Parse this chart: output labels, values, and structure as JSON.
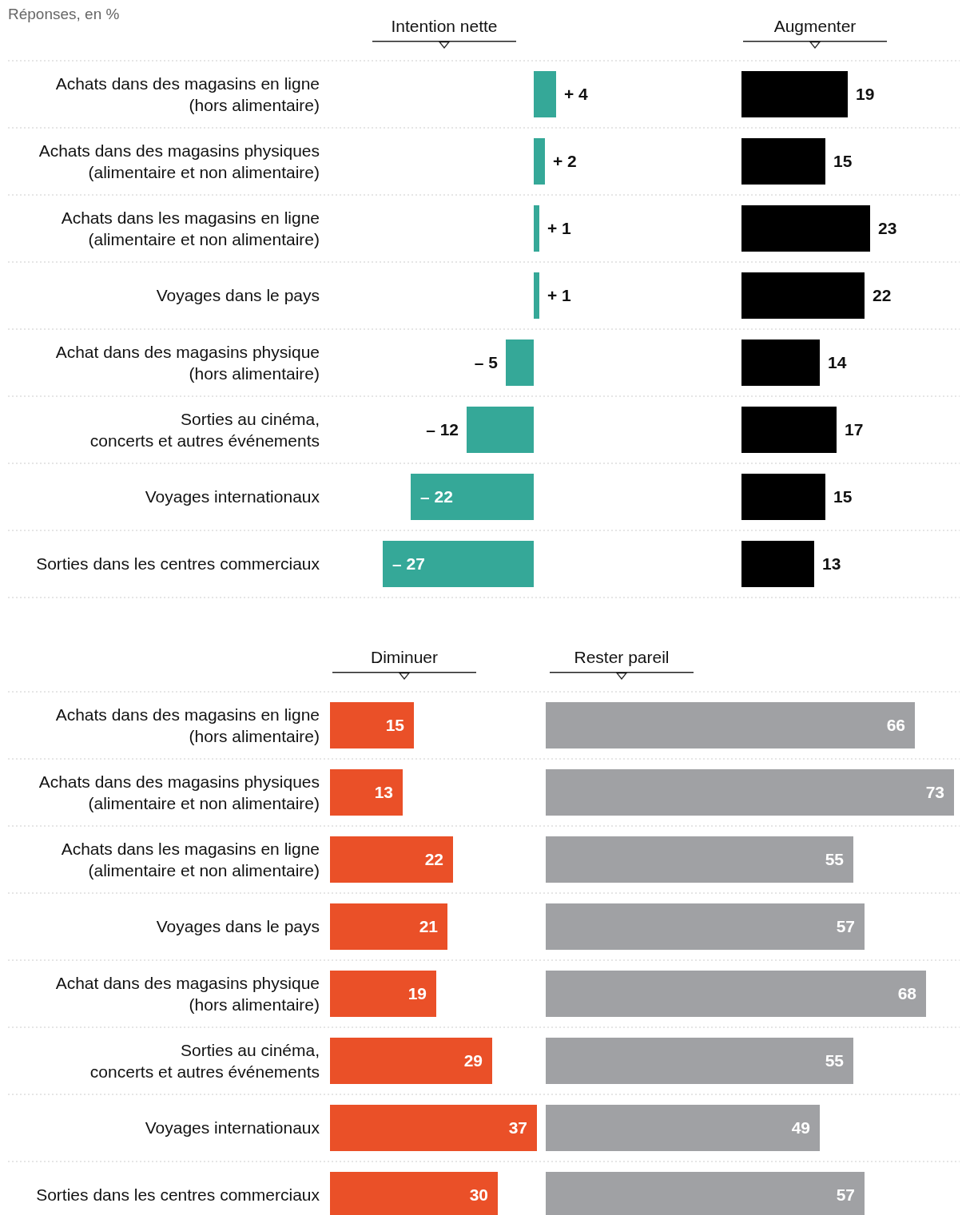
{
  "chart_data": [
    {
      "type": "bar",
      "orientation": "horizontal",
      "title": "Intention nette",
      "subtitle": "Réponses, en %",
      "categories": [
        "Achats dans des magasins en ligne (hors alimentaire)",
        "Achats dans des magasins physiques (alimentaire et non alimentaire)",
        "Achats dans les magasins en ligne (alimentaire et non alimentaire)",
        "Voyages dans le pays",
        "Achat dans des magasins physique (hors alimentaire)",
        "Sorties au cinéma, concerts et autres événements",
        "Voyages internationaux",
        "Sorties dans les centres commerciaux"
      ],
      "values": [
        4,
        2,
        1,
        1,
        -5,
        -12,
        -22,
        -27
      ],
      "value_labels": [
        "+ 4",
        "+ 2",
        "+ 1",
        "+ 1",
        "– 5",
        "– 12",
        "– 22",
        "– 27"
      ],
      "color": "#35a898",
      "tick_labels": "y"
    },
    {
      "type": "bar",
      "orientation": "horizontal",
      "title": "Augmenter",
      "categories": [
        null,
        null,
        null,
        null,
        null,
        null,
        null,
        null
      ],
      "values": [
        19,
        15,
        23,
        22,
        14,
        17,
        15,
        13
      ],
      "data_labels": true,
      "color": "#000000",
      "tick_labels": false
    },
    {
      "type": "bar",
      "orientation": "horizontal",
      "title": "Diminuer",
      "categories": [
        "Achats dans des magasins en ligne (hors alimentaire)",
        "Achats dans des magasins physiques (alimentaire et non alimentaire)",
        "Achats dans les magasins en ligne (alimentaire et non alimentaire)",
        "Voyages dans le pays",
        "Achat dans des magasins physique (hors alimentaire)",
        "Sorties au cinéma, concerts et autres événements",
        "Voyages internationaux",
        "Sorties dans les centres commerciaux"
      ],
      "values": [
        15,
        13,
        22,
        21,
        19,
        29,
        37,
        30
      ],
      "data_labels": true,
      "color": "#ea5028",
      "tick_labels": "y"
    },
    {
      "type": "bar",
      "orientation": "horizontal",
      "title": "Rester pareil",
      "categories": [
        null,
        null,
        null,
        null,
        null,
        null,
        null,
        null
      ],
      "values": [
        66,
        73,
        55,
        57,
        68,
        55,
        49,
        57
      ],
      "data_labels": true,
      "color": "#a0a1a4",
      "tick_labels": false
    }
  ]
}
